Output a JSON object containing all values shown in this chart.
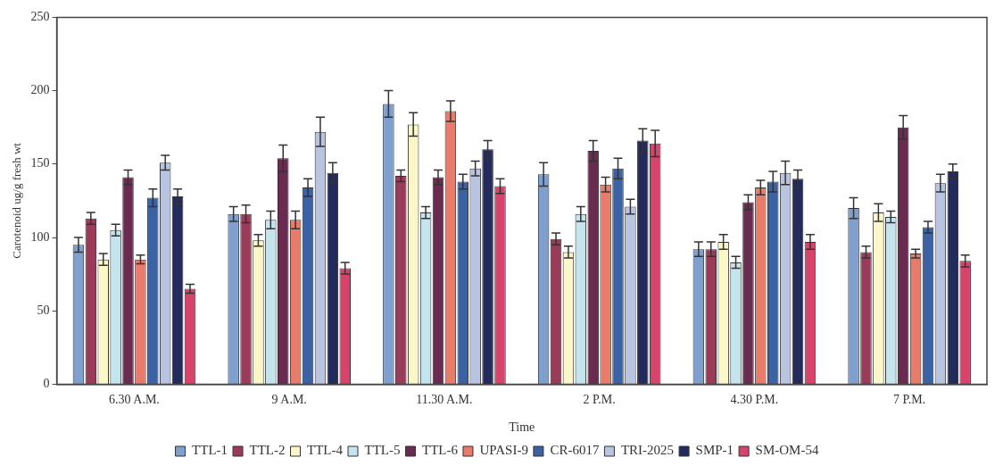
{
  "chart_data": {
    "type": "bar",
    "xlabel": "Time",
    "ylabel": "Carotenoid ug/g fresh wt",
    "categories": [
      "6.30 A.M.",
      "9 A.M.",
      "11.30 A.M.",
      "2 P.M.",
      "4.30 P.M.",
      "7 P.M."
    ],
    "ylim": [
      0,
      250
    ],
    "yticks": [
      0,
      50,
      100,
      150,
      200,
      250
    ],
    "grid": false,
    "legend": "bottom",
    "series": [
      {
        "name": "TTL-1",
        "color": "#7f9fcf",
        "values": [
          95,
          116,
          191,
          143,
          92,
          120
        ],
        "errors": [
          5,
          5,
          9,
          8,
          5,
          7
        ]
      },
      {
        "name": "TTL-2",
        "color": "#9b3b5a",
        "values": [
          113,
          116,
          142,
          99,
          92,
          90
        ],
        "errors": [
          4,
          6,
          4,
          4,
          5,
          4
        ]
      },
      {
        "name": "TTL-4",
        "color": "#fbf7c8",
        "values": [
          85,
          98,
          177,
          90,
          97,
          117
        ],
        "errors": [
          4,
          4,
          8,
          4,
          5,
          6
        ]
      },
      {
        "name": "TTL-5",
        "color": "#c4e4ee",
        "values": [
          105,
          112,
          117,
          116,
          83,
          114
        ],
        "errors": [
          4,
          6,
          4,
          5,
          4,
          4
        ]
      },
      {
        "name": "TTL-6",
        "color": "#6b2a50",
        "values": [
          141,
          154,
          141,
          159,
          124,
          175
        ],
        "errors": [
          5,
          9,
          5,
          7,
          5,
          8
        ]
      },
      {
        "name": "UPASI-9",
        "color": "#e87b6a",
        "values": [
          85,
          112,
          186,
          136,
          134,
          89
        ],
        "errors": [
          3,
          6,
          7,
          5,
          5,
          3
        ]
      },
      {
        "name": "CR-6017",
        "color": "#3a62a4",
        "values": [
          127,
          134,
          138,
          147,
          138,
          107
        ],
        "errors": [
          6,
          6,
          5,
          7,
          7,
          4
        ]
      },
      {
        "name": "TRI-2025",
        "color": "#b8c4e0",
        "values": [
          151,
          172,
          147,
          121,
          144,
          137
        ],
        "errors": [
          5,
          10,
          5,
          5,
          8,
          6
        ]
      },
      {
        "name": "SMP-1",
        "color": "#232a5c",
        "values": [
          128,
          144,
          160,
          166,
          140,
          145
        ],
        "errors": [
          5,
          7,
          6,
          8,
          6,
          5
        ]
      },
      {
        "name": "SM-OM-54",
        "color": "#d8436c",
        "values": [
          65,
          79,
          135,
          164,
          97,
          84
        ],
        "errors": [
          3,
          4,
          5,
          9,
          5,
          4
        ]
      }
    ]
  }
}
